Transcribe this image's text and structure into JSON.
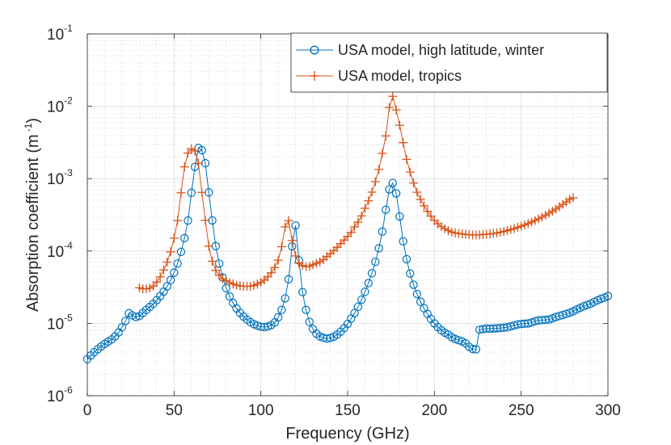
{
  "chart_data": {
    "type": "line",
    "title": "",
    "xlabel": "Frequency (GHz)",
    "ylabel_main": "Absorption coefficient (m",
    "ylabel_sup": "-1",
    "ylabel_end": ")",
    "xlim": [
      0,
      300
    ],
    "ylim_log10": [
      -6,
      -1
    ],
    "yscale": "log",
    "grid": true,
    "minor_grid": true,
    "legend_position": "top-right",
    "xticks": [
      {
        "value": 0,
        "label": "0"
      },
      {
        "value": 50,
        "label": "50"
      },
      {
        "value": 100,
        "label": "100"
      },
      {
        "value": 150,
        "label": "150"
      },
      {
        "value": 200,
        "label": "200"
      },
      {
        "value": 250,
        "label": "250"
      },
      {
        "value": 300,
        "label": "300"
      }
    ],
    "yticks": [
      {
        "exp": -6,
        "base": "10",
        "sup": "-6"
      },
      {
        "exp": -5,
        "base": "10",
        "sup": "-5"
      },
      {
        "exp": -4,
        "base": "10",
        "sup": "-4"
      },
      {
        "exp": -3,
        "base": "10",
        "sup": "-3"
      },
      {
        "exp": -2,
        "base": "10",
        "sup": "-2"
      },
      {
        "exp": -1,
        "base": "10",
        "sup": "-1"
      }
    ],
    "x_step": 2,
    "series": [
      {
        "name": "USA model, high latitude, winter",
        "color": "#0072BD",
        "marker": "circle",
        "x_start": 0,
        "log10_values": [
          -5.495,
          -5.444,
          -5.398,
          -5.357,
          -5.319,
          -5.284,
          -5.252,
          -5.222,
          -5.18,
          -5.125,
          -5.054,
          -4.967,
          -4.86,
          -4.89,
          -4.912,
          -4.899,
          -4.857,
          -4.814,
          -4.772,
          -4.73,
          -4.68,
          -4.624,
          -4.561,
          -4.487,
          -4.401,
          -4.299,
          -4.173,
          -4.011,
          -3.822,
          -3.579,
          -3.196,
          -2.837,
          -2.575,
          -2.607,
          -2.787,
          -3.19,
          -3.577,
          -3.932,
          -4.174,
          -4.366,
          -4.513,
          -4.627,
          -4.719,
          -4.794,
          -4.855,
          -4.906,
          -4.948,
          -4.983,
          -5.012,
          -5.031,
          -5.047,
          -5.051,
          -5.044,
          -5.024,
          -4.986,
          -4.917,
          -4.814,
          -4.654,
          -4.391,
          -3.936,
          -3.647,
          -4.13,
          -4.569,
          -4.814,
          -4.98,
          -5.077,
          -5.143,
          -5.18,
          -5.2,
          -5.21,
          -5.201,
          -5.184,
          -5.155,
          -5.115,
          -5.066,
          -5.007,
          -4.935,
          -4.857,
          -4.77,
          -4.672,
          -4.563,
          -4.444,
          -4.307,
          -4.149,
          -3.963,
          -3.732,
          -3.429,
          -3.149,
          -3.061,
          -3.203,
          -3.523,
          -3.866,
          -4.113,
          -4.311,
          -4.466,
          -4.594,
          -4.701,
          -4.792,
          -4.87,
          -4.939,
          -5.0,
          -5.051,
          -5.095,
          -5.129,
          -5.156,
          -5.19,
          -5.217,
          -5.233,
          -5.25,
          -5.276,
          -5.324,
          -5.354,
          -5.359,
          -5.088,
          -5.079,
          -5.072,
          -5.073,
          -5.07,
          -5.067,
          -5.065,
          -5.059,
          -5.054,
          -5.041,
          -5.028,
          -5.015,
          -5.008,
          -5.005,
          -5.0,
          -4.988,
          -4.97,
          -4.959,
          -4.954,
          -4.952,
          -4.946,
          -4.931,
          -4.912,
          -4.898,
          -4.884,
          -4.87,
          -4.853,
          -4.833,
          -4.81,
          -4.786,
          -4.764,
          -4.746,
          -4.728,
          -4.704,
          -4.681,
          -4.66,
          -4.644,
          -4.621
        ]
      },
      {
        "name": "USA model, tropics",
        "color": "#D95319",
        "marker": "plus",
        "x_start": 30,
        "log10_values": [
          -4.508,
          -4.523,
          -4.523,
          -4.513,
          -4.485,
          -4.429,
          -4.357,
          -4.262,
          -4.153,
          -4.011,
          -3.822,
          -3.579,
          -3.196,
          -2.837,
          -2.647,
          -2.587,
          -2.617,
          -2.787,
          -3.19,
          -3.577,
          -3.932,
          -4.141,
          -4.266,
          -4.336,
          -4.382,
          -4.411,
          -4.437,
          -4.455,
          -4.472,
          -4.482,
          -4.487,
          -4.489,
          -4.487,
          -4.475,
          -4.457,
          -4.433,
          -4.401,
          -4.357,
          -4.3,
          -4.228,
          -4.127,
          -3.94,
          -3.667,
          -3.58,
          -3.854,
          -4.068,
          -4.167,
          -4.2,
          -4.216,
          -4.211,
          -4.19,
          -4.17,
          -4.15,
          -4.12,
          -4.077,
          -4.037,
          -3.994,
          -3.95,
          -3.898,
          -3.849,
          -3.798,
          -3.743,
          -3.667,
          -3.6,
          -3.515,
          -3.41,
          -3.306,
          -3.186,
          -3.042,
          -2.873,
          -2.65,
          -2.41,
          -2.018,
          -1.862,
          -2.05,
          -2.263,
          -2.503,
          -2.734,
          -2.91,
          -3.06,
          -3.188,
          -3.287,
          -3.376,
          -3.452,
          -3.518,
          -3.577,
          -3.624,
          -3.662,
          -3.692,
          -3.717,
          -3.737,
          -3.75,
          -3.758,
          -3.764,
          -3.77,
          -3.775,
          -3.778,
          -3.779,
          -3.778,
          -3.772,
          -3.768,
          -3.763,
          -3.757,
          -3.75,
          -3.741,
          -3.73,
          -3.718,
          -3.704,
          -3.69,
          -3.674,
          -3.657,
          -3.64,
          -3.62,
          -3.6,
          -3.578,
          -3.555,
          -3.531,
          -3.505,
          -3.478,
          -3.45,
          -3.42,
          -3.389,
          -3.356,
          -3.322,
          -3.285,
          -3.265
        ]
      }
    ]
  }
}
